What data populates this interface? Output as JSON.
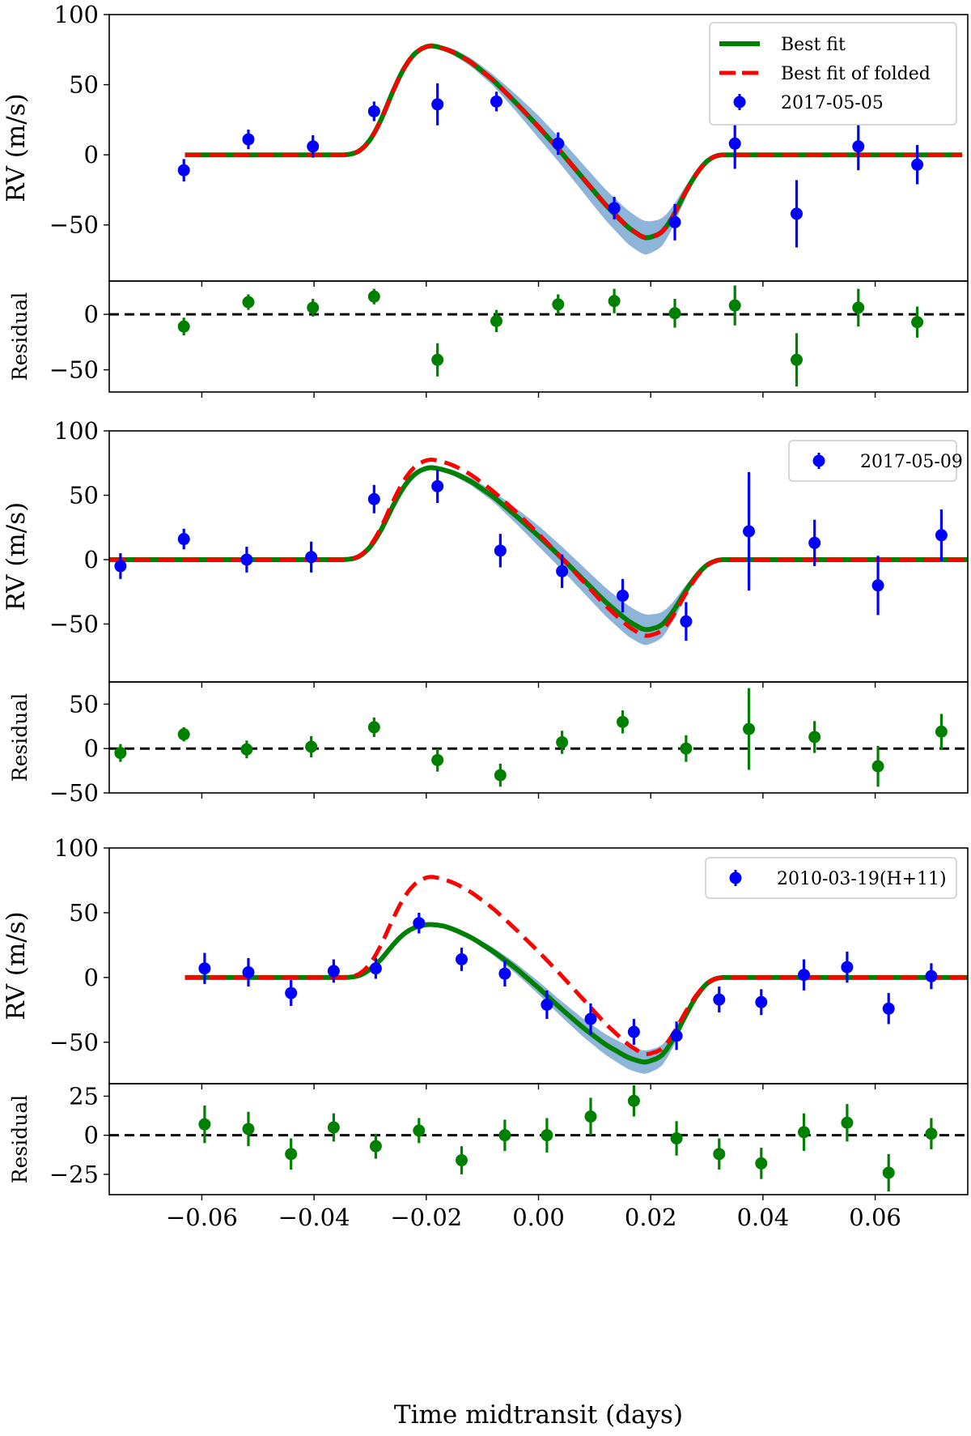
{
  "chart_data": {
    "type": "scatter",
    "x_label": "Time midtransit (days)",
    "x_range": [
      -0.0765,
      0.0765
    ],
    "x_ticks": [
      -0.06,
      -0.04,
      -0.02,
      0.0,
      0.02,
      0.04,
      0.06
    ],
    "x_tick_labels": [
      "−0.06",
      "−0.04",
      "−0.02",
      "0.00",
      "0.02",
      "0.04",
      "0.06"
    ],
    "grid": false,
    "legend_placement": "top-right",
    "colors": {
      "best_fit": "#008000",
      "folded_fit": "#ff0000",
      "rv_points": "#0000ff",
      "residual_points": "#008000",
      "uncertainty_band": "#7aa7d2",
      "zero_line": "#000000"
    },
    "legend_labels": {
      "best_fit": "Best fit",
      "folded_fit": "Best fit of folded"
    },
    "folded_fit_curve": {
      "t": [
        -0.075,
        -0.034,
        -0.032,
        -0.03,
        -0.028,
        -0.026,
        -0.024,
        -0.022,
        -0.02,
        -0.019,
        -0.017,
        -0.015,
        -0.012,
        -0.008,
        -0.004,
        0.0,
        0.004,
        0.008,
        0.012,
        0.016,
        0.019,
        0.022,
        0.024,
        0.026,
        0.028,
        0.03,
        0.032,
        0.034,
        0.075
      ],
      "rv": [
        0,
        0,
        2,
        10,
        25,
        45,
        62,
        73,
        77.5,
        78,
        76,
        73,
        66,
        53,
        37,
        20,
        2,
        -17,
        -36,
        -52,
        -60,
        -56,
        -44,
        -28,
        -14,
        -4,
        0,
        0,
        0
      ]
    },
    "panels": [
      {
        "id": "2017-05-05",
        "legend_label": "2017-05-05",
        "y_label": "RV (m/s)",
        "y_range": [
          -90,
          100
        ],
        "y_ticks": [
          -50,
          0,
          50,
          100
        ],
        "y_tick_labels": [
          "−50",
          "0",
          "50",
          "100"
        ],
        "fit_x_range": [
          -0.063,
          0.0755
        ],
        "best_fit_scale": 1.0,
        "band": [
          0,
          0,
          0,
          1,
          2,
          3,
          4,
          6,
          8,
          9,
          10,
          11,
          12,
          12,
          10,
          6,
          2,
          0,
          0
        ],
        "band_t": [
          -0.034,
          -0.028,
          -0.024,
          -0.02,
          -0.016,
          -0.012,
          -0.008,
          -0.004,
          0.0,
          0.004,
          0.008,
          0.012,
          0.016,
          0.019,
          0.022,
          0.025,
          0.028,
          0.032,
          0.034
        ],
        "rv_points": [
          {
            "t": -0.0632,
            "rv": -11,
            "err": 8
          },
          {
            "t": -0.0517,
            "rv": 11,
            "err": 7
          },
          {
            "t": -0.0402,
            "rv": 6,
            "err": 8
          },
          {
            "t": -0.0293,
            "rv": 31,
            "err": 7
          },
          {
            "t": -0.018,
            "rv": 36,
            "err": 15
          },
          {
            "t": -0.0075,
            "rv": 38,
            "err": 7
          },
          {
            "t": 0.0035,
            "rv": 8,
            "err": 8
          },
          {
            "t": 0.0135,
            "rv": -38,
            "err": 8
          },
          {
            "t": 0.0243,
            "rv": -48,
            "err": 13
          },
          {
            "t": 0.035,
            "rv": 8,
            "err": 18
          },
          {
            "t": 0.046,
            "rv": -42,
            "err": 24
          },
          {
            "t": 0.057,
            "rv": 6,
            "err": 17
          },
          {
            "t": 0.0675,
            "rv": -7,
            "err": 14
          }
        ],
        "residual": {
          "y_label": "Residual",
          "y_range": [
            -70,
            30
          ],
          "y_ticks": [
            -50,
            0
          ],
          "y_tick_labels": [
            "−50",
            "0"
          ],
          "points": [
            {
              "t": -0.0632,
              "r": -11,
              "err": 8
            },
            {
              "t": -0.0517,
              "r": 11,
              "err": 7
            },
            {
              "t": -0.0402,
              "r": 6,
              "err": 8
            },
            {
              "t": -0.0293,
              "r": 16,
              "err": 7
            },
            {
              "t": -0.018,
              "r": -41,
              "err": 15
            },
            {
              "t": -0.0075,
              "r": -6,
              "err": 10
            },
            {
              "t": 0.0035,
              "r": 9,
              "err": 9
            },
            {
              "t": 0.0135,
              "r": 12,
              "err": 11
            },
            {
              "t": 0.0243,
              "r": 1,
              "err": 13
            },
            {
              "t": 0.035,
              "r": 8,
              "err": 18
            },
            {
              "t": 0.046,
              "r": -41,
              "err": 24
            },
            {
              "t": 0.057,
              "r": 6,
              "err": 17
            },
            {
              "t": 0.0675,
              "r": -7,
              "err": 14
            }
          ]
        }
      },
      {
        "id": "2017-05-09",
        "legend_label": "2017-05-09",
        "y_label": "RV (m/s)",
        "y_range": [
          -95,
          100
        ],
        "y_ticks": [
          -50,
          0,
          50,
          100
        ],
        "y_tick_labels": [
          "−50",
          "0",
          "50",
          "100"
        ],
        "fit_x_range": [
          -0.0765,
          0.0765
        ],
        "best_fit_scale": 0.92,
        "band": [
          0,
          0,
          0,
          1,
          2,
          3,
          4,
          6,
          8,
          9,
          10,
          11,
          12,
          12,
          10,
          6,
          2,
          0,
          0
        ],
        "band_t": [
          -0.034,
          -0.028,
          -0.024,
          -0.02,
          -0.016,
          -0.012,
          -0.008,
          -0.004,
          0.0,
          0.004,
          0.008,
          0.012,
          0.016,
          0.019,
          0.022,
          0.025,
          0.028,
          0.032,
          0.034
        ],
        "rv_points": [
          {
            "t": -0.0745,
            "rv": -5,
            "err": 10
          },
          {
            "t": -0.0632,
            "rv": 16,
            "err": 8
          },
          {
            "t": -0.052,
            "rv": 0,
            "err": 10
          },
          {
            "t": -0.0405,
            "rv": 2,
            "err": 12
          },
          {
            "t": -0.0293,
            "rv": 47,
            "err": 11
          },
          {
            "t": -0.018,
            "rv": 57,
            "err": 13
          },
          {
            "t": -0.0068,
            "rv": 7,
            "err": 13
          },
          {
            "t": 0.0042,
            "rv": -9,
            "err": 13
          },
          {
            "t": 0.015,
            "rv": -28,
            "err": 13
          },
          {
            "t": 0.0263,
            "rv": -48,
            "err": 15
          },
          {
            "t": 0.0375,
            "rv": 22,
            "err": 46
          },
          {
            "t": 0.0492,
            "rv": 13,
            "err": 18
          },
          {
            "t": 0.0605,
            "rv": -20,
            "err": 23
          },
          {
            "t": 0.0718,
            "rv": 19,
            "err": 20
          }
        ],
        "residual": {
          "y_label": "Residual",
          "y_range": [
            -50,
            75
          ],
          "y_ticks": [
            -50,
            0,
            50
          ],
          "y_tick_labels": [
            "−50",
            "0",
            "50"
          ],
          "points": [
            {
              "t": -0.0745,
              "r": -5,
              "err": 10
            },
            {
              "t": -0.0632,
              "r": 16,
              "err": 8
            },
            {
              "t": -0.052,
              "r": -1,
              "err": 10
            },
            {
              "t": -0.0405,
              "r": 2,
              "err": 12
            },
            {
              "t": -0.0293,
              "r": 24,
              "err": 11
            },
            {
              "t": -0.018,
              "r": -13,
              "err": 13
            },
            {
              "t": -0.0068,
              "r": -30,
              "err": 13
            },
            {
              "t": 0.0042,
              "r": 7,
              "err": 13
            },
            {
              "t": 0.015,
              "r": 30,
              "err": 13
            },
            {
              "t": 0.0263,
              "r": 0,
              "err": 15
            },
            {
              "t": 0.0375,
              "r": 22,
              "err": 46
            },
            {
              "t": 0.0492,
              "r": 13,
              "err": 18
            },
            {
              "t": 0.0605,
              "r": -20,
              "err": 23
            },
            {
              "t": 0.0718,
              "r": 19,
              "err": 20
            }
          ]
        }
      },
      {
        "id": "2010-03-19(H+11)",
        "legend_label": "2010-03-19(H+11)",
        "y_label": "RV (m/s)",
        "y_range": [
          -82,
          100
        ],
        "y_ticks": [
          -50,
          0,
          50,
          100
        ],
        "y_tick_labels": [
          "−50",
          "0",
          "50",
          "100"
        ],
        "fit_x_range": [
          -0.063,
          0.0765
        ],
        "best_fit_scale": "asymmetric",
        "best_fit_curve": {
          "t": [
            -0.0765,
            -0.034,
            -0.032,
            -0.03,
            -0.028,
            -0.026,
            -0.024,
            -0.022,
            -0.02,
            -0.019,
            -0.017,
            -0.015,
            -0.012,
            -0.008,
            -0.004,
            0.0,
            0.004,
            0.008,
            0.012,
            0.016,
            0.019,
            0.022,
            0.024,
            0.026,
            0.028,
            0.03,
            0.032,
            0.034,
            0.0765
          ],
          "rv": [
            0,
            0,
            1,
            6,
            14,
            25,
            34,
            39,
            41,
            41,
            40,
            37,
            31,
            20,
            7,
            -8,
            -24,
            -39,
            -52,
            -62,
            -66,
            -61,
            -48,
            -31,
            -15,
            -4,
            0,
            0,
            0
          ]
        },
        "band": [
          0,
          0,
          0,
          1,
          2,
          2,
          3,
          4,
          5,
          6,
          7,
          8,
          9,
          9,
          8,
          5,
          2,
          0,
          0
        ],
        "band_t": [
          -0.034,
          -0.028,
          -0.024,
          -0.02,
          -0.016,
          -0.012,
          -0.008,
          -0.004,
          0.0,
          0.004,
          0.008,
          0.012,
          0.016,
          0.019,
          0.022,
          0.025,
          0.028,
          0.032,
          0.034
        ],
        "rv_points": [
          {
            "t": -0.0595,
            "rv": 7,
            "err": 12
          },
          {
            "t": -0.0517,
            "rv": 4,
            "err": 11
          },
          {
            "t": -0.0441,
            "rv": -12,
            "err": 10
          },
          {
            "t": -0.0365,
            "rv": 5,
            "err": 9
          },
          {
            "t": -0.029,
            "rv": 7,
            "err": 8
          },
          {
            "t": -0.0213,
            "rv": 42,
            "err": 8
          },
          {
            "t": -0.0137,
            "rv": 14,
            "err": 9
          },
          {
            "t": -0.006,
            "rv": 3,
            "err": 10
          },
          {
            "t": 0.0015,
            "rv": -21,
            "err": 11
          },
          {
            "t": 0.0093,
            "rv": -32,
            "err": 12
          },
          {
            "t": 0.017,
            "rv": -42,
            "err": 10
          },
          {
            "t": 0.0246,
            "rv": -45,
            "err": 11
          },
          {
            "t": 0.0322,
            "rv": -17,
            "err": 10
          },
          {
            "t": 0.0397,
            "rv": -19,
            "err": 10
          },
          {
            "t": 0.0473,
            "rv": 2,
            "err": 12
          },
          {
            "t": 0.055,
            "rv": 8,
            "err": 12
          },
          {
            "t": 0.0624,
            "rv": -24,
            "err": 12
          },
          {
            "t": 0.07,
            "rv": 1,
            "err": 10
          }
        ],
        "residual": {
          "y_label": "Residual",
          "y_range": [
            -38,
            33
          ],
          "y_ticks": [
            -25,
            0,
            25
          ],
          "y_tick_labels": [
            "−25",
            "0",
            "25"
          ],
          "points": [
            {
              "t": -0.0595,
              "r": 7,
              "err": 12
            },
            {
              "t": -0.0517,
              "r": 4,
              "err": 11
            },
            {
              "t": -0.0441,
              "r": -12,
              "err": 10
            },
            {
              "t": -0.0365,
              "r": 5,
              "err": 9
            },
            {
              "t": -0.029,
              "r": -7,
              "err": 8
            },
            {
              "t": -0.0213,
              "r": 3,
              "err": 8
            },
            {
              "t": -0.0137,
              "r": -16,
              "err": 9
            },
            {
              "t": -0.006,
              "r": 0,
              "err": 10
            },
            {
              "t": 0.0015,
              "r": 0,
              "err": 11
            },
            {
              "t": 0.0093,
              "r": 12,
              "err": 12
            },
            {
              "t": 0.017,
              "r": 22,
              "err": 10
            },
            {
              "t": 0.0246,
              "r": -2,
              "err": 11
            },
            {
              "t": 0.0322,
              "r": -12,
              "err": 10
            },
            {
              "t": 0.0397,
              "r": -18,
              "err": 10
            },
            {
              "t": 0.0473,
              "r": 2,
              "err": 12
            },
            {
              "t": 0.055,
              "r": 8,
              "err": 12
            },
            {
              "t": 0.0624,
              "r": -24,
              "err": 12
            },
            {
              "t": 0.07,
              "r": 1,
              "err": 10
            }
          ]
        }
      }
    ]
  }
}
